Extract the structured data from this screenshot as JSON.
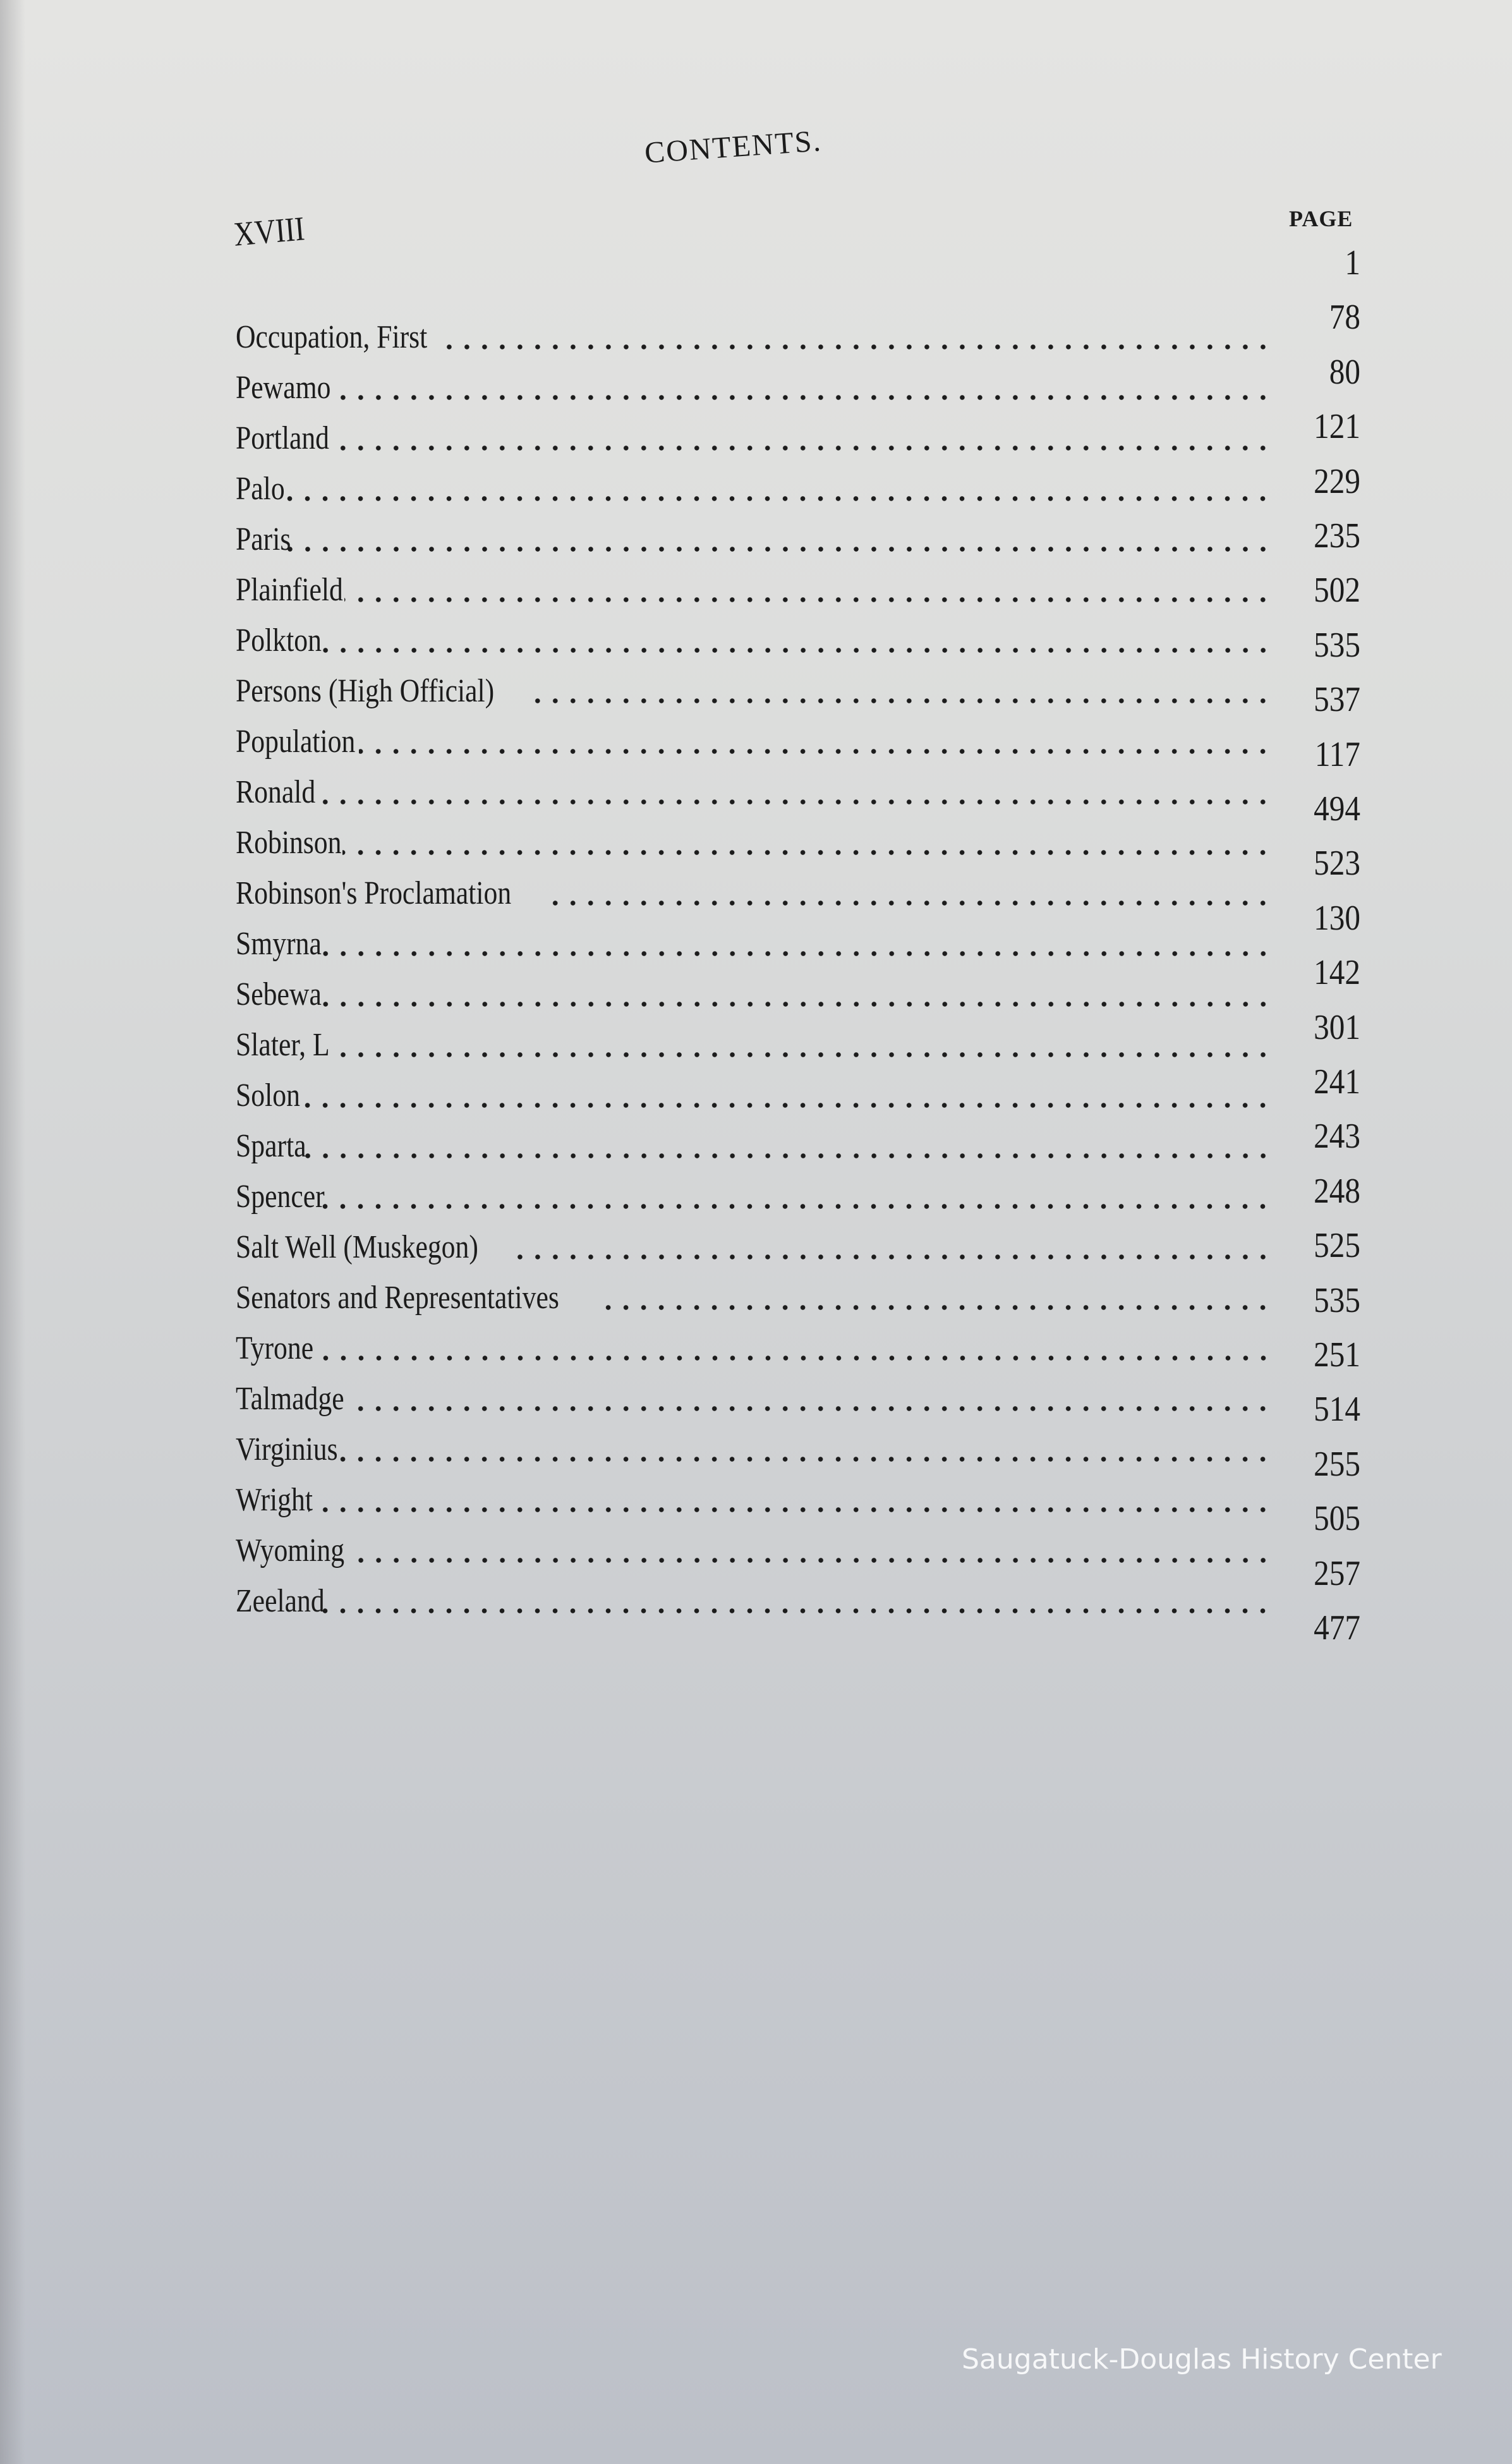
{
  "header": {
    "title": "CONTENTS.",
    "volume": "XVIII",
    "page_column_label": "PAGE"
  },
  "entries": [
    "Occupation, First",
    "Pewamo",
    "Portland",
    "Palo",
    "Paris",
    "Plainfield",
    "Polkton",
    "Persons (High Official)",
    "Population",
    "Ronald",
    "Robinson",
    "Robinson's Proclamation",
    "Smyrna",
    "Sebewa",
    "Slater, L",
    "Solon",
    "Sparta",
    "Spencer",
    "Salt Well (Muskegon)",
    "Senators and Representatives",
    "Tyrone",
    "Talmadge",
    "Virginius",
    "Wright",
    "Wyoming",
    "Zeeland"
  ],
  "pages": [
    "1",
    "78",
    "80",
    "121",
    "229",
    "235",
    "502",
    "535",
    "537",
    "117",
    "494",
    "523",
    "130",
    "142",
    "301",
    "241",
    "243",
    "248",
    "525",
    "535",
    "251",
    "514",
    "255",
    "505",
    "257",
    "477"
  ],
  "watermark": "Saugatuck-Douglas History Center"
}
